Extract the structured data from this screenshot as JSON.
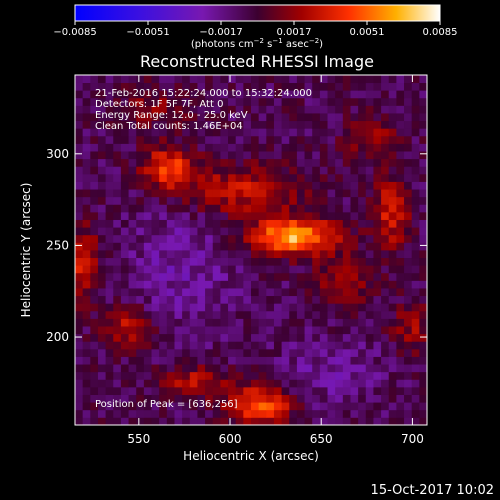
{
  "chart_data": {
    "type": "heatmap",
    "title": "Reconstructed RHESSI Image",
    "xlabel": "Heliocentric X (arcsec)",
    "ylabel": "Heliocentric Y (arcsec)",
    "xlim": [
      515,
      708
    ],
    "ylim": [
      152,
      343
    ],
    "x_ticks": [
      {
        "value": 550,
        "label": "550"
      },
      {
        "value": 600,
        "label": "600"
      },
      {
        "value": 650,
        "label": "650"
      },
      {
        "value": 700,
        "label": "700"
      }
    ],
    "y_ticks": [
      {
        "value": 200,
        "label": "200"
      },
      {
        "value": 250,
        "label": "250"
      },
      {
        "value": 300,
        "label": "300"
      }
    ],
    "colorbar": {
      "colormap": "hot-on-blue",
      "range": [
        -0.0085,
        0.0085
      ],
      "ticks": [
        {
          "value": -0.0085,
          "label": "−0.0085"
        },
        {
          "value": -0.0051,
          "label": "−0.0051"
        },
        {
          "value": -0.0017,
          "label": "−0.0017"
        },
        {
          "value": 0.0017,
          "label": "0.0017"
        },
        {
          "value": 0.0051,
          "label": "0.0051"
        },
        {
          "value": 0.0085,
          "label": "0.0085"
        }
      ],
      "unit_parts": [
        {
          "text": "(photons cm",
          "super": false
        },
        {
          "text": "−2",
          "super": true
        },
        {
          "text": " s",
          "super": false
        },
        {
          "text": "−1",
          "super": true
        },
        {
          "text": " asec",
          "super": false
        },
        {
          "text": "−2",
          "super": true
        },
        {
          "text": ")",
          "super": false
        }
      ]
    },
    "annotations": [
      "21-Feb-2016 15:22:24.000 to 15:32:24.000",
      "Detectors: 1F 5F 7F, Att 0",
      "Energy Range: 12.0 - 25.0 keV",
      "Clean    Total counts: 1.46E+04"
    ],
    "peak_label": "Position of Peak = [636,256]",
    "peak": [
      636,
      256
    ],
    "grid_shape": [
      46,
      46
    ],
    "sources": [
      {
        "x": 635,
        "y": 255,
        "sx": 17,
        "sy": 7,
        "amp": 0.0072
      },
      {
        "x": 604,
        "y": 280,
        "sx": 24,
        "sy": 10,
        "amp": 0.0034
      },
      {
        "x": 566,
        "y": 293,
        "sx": 10,
        "sy": 8,
        "amp": 0.0048
      },
      {
        "x": 688,
        "y": 268,
        "sx": 7,
        "sy": 14,
        "amp": 0.0038
      },
      {
        "x": 677,
        "y": 310,
        "sx": 10,
        "sy": 8,
        "amp": 0.0025
      },
      {
        "x": 663,
        "y": 230,
        "sx": 10,
        "sy": 9,
        "amp": 0.003
      },
      {
        "x": 616,
        "y": 163,
        "sx": 13,
        "sy": 7,
        "amp": 0.0056
      },
      {
        "x": 580,
        "y": 176,
        "sx": 14,
        "sy": 6,
        "amp": 0.003
      },
      {
        "x": 545,
        "y": 205,
        "sx": 9,
        "sy": 8,
        "amp": 0.0034
      },
      {
        "x": 520,
        "y": 240,
        "sx": 6,
        "sy": 14,
        "amp": 0.004
      },
      {
        "x": 700,
        "y": 205,
        "sx": 8,
        "sy": 10,
        "amp": 0.0024
      },
      {
        "x": 560,
        "y": 325,
        "sx": 14,
        "sy": 8,
        "amp": 0.002
      },
      {
        "x": 575,
        "y": 240,
        "sx": 22,
        "sy": 28,
        "amp": -0.0015
      },
      {
        "x": 655,
        "y": 180,
        "sx": 22,
        "sy": 14,
        "amp": -0.0013
      }
    ],
    "background": -0.0006,
    "noise": 0.0011
  },
  "footer_date": "15-Oct-2017 10:02"
}
